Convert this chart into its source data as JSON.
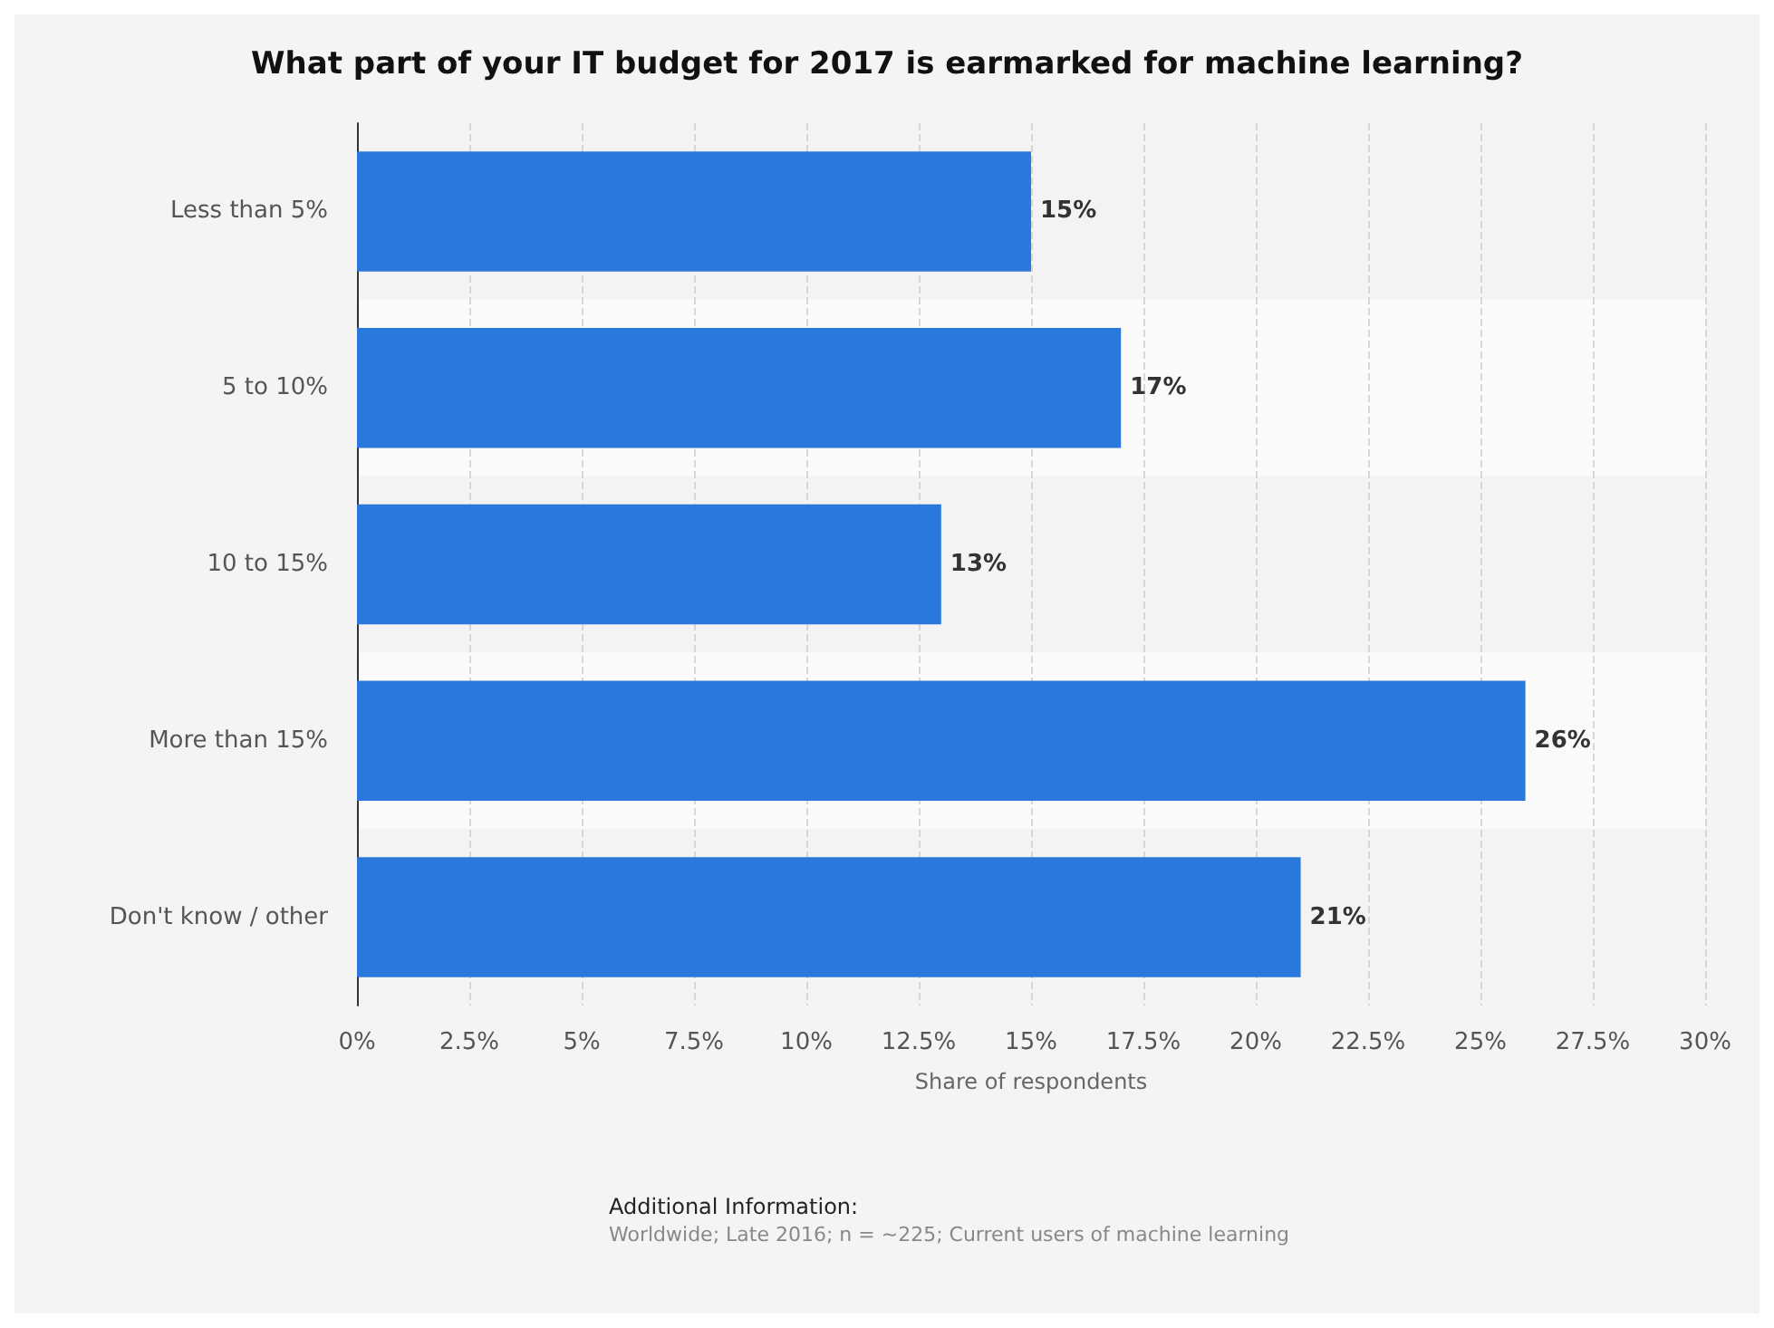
{
  "chart_data": {
    "type": "bar",
    "orientation": "horizontal",
    "title": "What part of your IT budget for 2017 is earmarked for machine learning?",
    "xlabel": "Share of respondents",
    "categories": [
      "Less than 5%",
      "5 to 10%",
      "10 to 15%",
      "More than 15%",
      "Don't know / other"
    ],
    "values": [
      15,
      17,
      13,
      26,
      21
    ],
    "color": "#2a78dc",
    "value_labels": [
      "15%",
      "17%",
      "13%",
      "26%",
      "21%"
    ],
    "xlim": [
      0,
      30
    ],
    "xticks": [
      {
        "value": 0,
        "label": "0%"
      },
      {
        "value": 2.5,
        "label": "2.5%"
      },
      {
        "value": 5,
        "label": "5%"
      },
      {
        "value": 7.5,
        "label": "7.5%"
      },
      {
        "value": 10,
        "label": "10%"
      },
      {
        "value": 12.5,
        "label": "12.5%"
      },
      {
        "value": 15,
        "label": "15%"
      },
      {
        "value": 17.5,
        "label": "17.5%"
      },
      {
        "value": 20,
        "label": "20%"
      },
      {
        "value": 22.5,
        "label": "22.5%"
      },
      {
        "value": 25,
        "label": "25%"
      },
      {
        "value": 27.5,
        "label": "27.5%"
      },
      {
        "value": 30,
        "label": "30%"
      }
    ],
    "grid": "x",
    "annotations": [
      "Additional Information:",
      "Worldwide; Late 2016; n = ~225; Current users of machine learning"
    ]
  }
}
